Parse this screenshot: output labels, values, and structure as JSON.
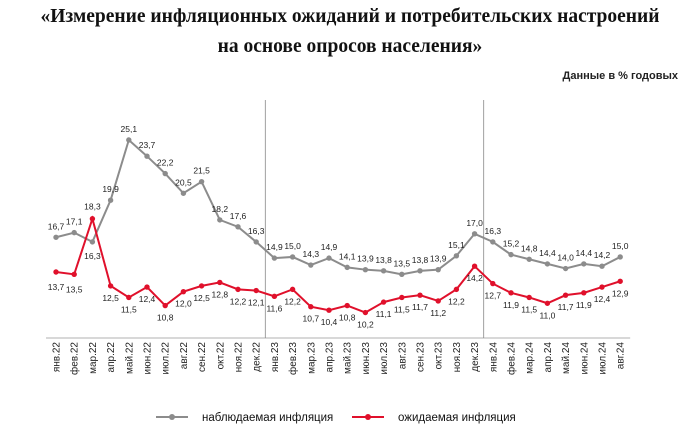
{
  "title_line1": "«Измерение инфляционных ожиданий и потребительских настроений",
  "title_line2": "на основе опросов населения»",
  "units": "Данные в % годовых",
  "chart_data": {
    "type": "line",
    "categories": [
      "янв.22",
      "фев.22",
      "мар.22",
      "апр.22",
      "май.22",
      "июн.22",
      "июл.22",
      "авг.22",
      "сен.22",
      "окт.22",
      "ноя.22",
      "дек.22",
      "янв.23",
      "фев.23",
      "мар.23",
      "апр.23",
      "май.23",
      "июн.23",
      "июл.23",
      "авг.23",
      "сен.23",
      "окт.23",
      "ноя.23",
      "дек.23",
      "янв.24",
      "фев.24",
      "мар.24",
      "апр.24",
      "май.24",
      "июн.24",
      "июл.24",
      "авг.24"
    ],
    "series": [
      {
        "name": "наблюдаемая инфляция",
        "color": "#8c8c8c",
        "values": [
          16.7,
          17.1,
          16.3,
          19.9,
          25.1,
          23.7,
          22.2,
          20.5,
          21.5,
          18.2,
          17.6,
          16.3,
          14.9,
          15.0,
          14.3,
          14.9,
          14.1,
          13.9,
          13.8,
          13.5,
          13.8,
          13.9,
          15.1,
          17.0,
          16.3,
          15.2,
          14.8,
          14.4,
          14.0,
          14.4,
          14.2,
          15.0
        ]
      },
      {
        "name": "ожидаемая инфляция",
        "color": "#e0102b",
        "values": [
          13.7,
          13.5,
          18.3,
          12.5,
          11.5,
          12.4,
          10.8,
          12.0,
          12.5,
          12.8,
          12.2,
          12.1,
          11.6,
          12.2,
          10.7,
          10.4,
          10.8,
          10.2,
          11.1,
          11.5,
          11.7,
          11.2,
          12.2,
          14.2,
          12.7,
          11.9,
          11.5,
          11.0,
          11.7,
          11.9,
          12.4,
          12.9
        ]
      }
    ],
    "ylim": [
      8,
      27
    ],
    "year_separators_after": [
      "дек.22",
      "дек.23"
    ]
  }
}
